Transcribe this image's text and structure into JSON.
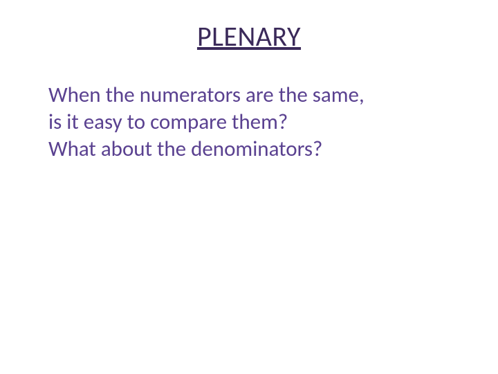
{
  "slide": {
    "title": "PLENARY",
    "line1": "When the numerators are the same,",
    "line2": "is it easy to compare them?",
    "line3": " What about the denominators?"
  },
  "style": {
    "title_color": "#3b2a5a",
    "body_color": "#5a4190",
    "background_color": "#ffffff",
    "title_fontsize": 40,
    "body_fontsize": 31
  }
}
